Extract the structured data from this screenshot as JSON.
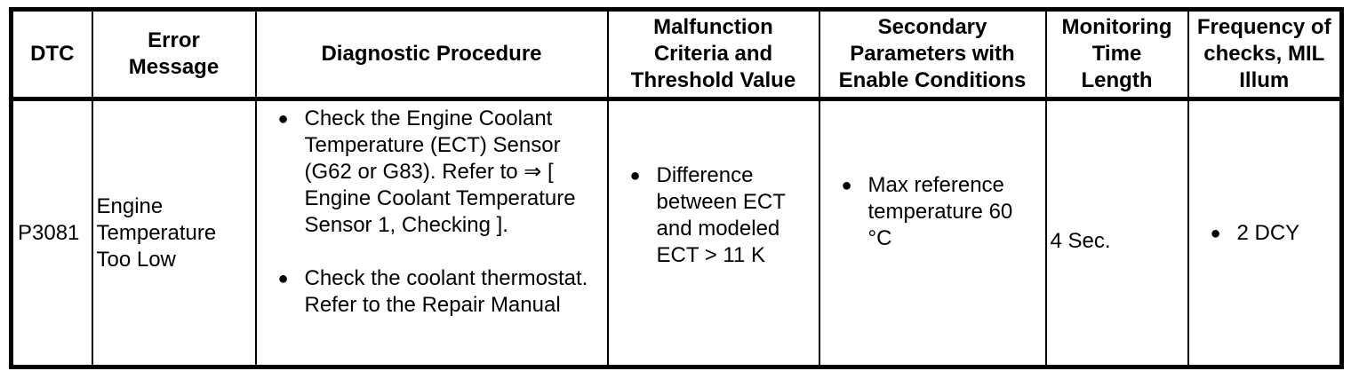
{
  "colors": {
    "border": "#000000",
    "text": "#000000",
    "background": "#ffffff"
  },
  "table": {
    "columns": [
      {
        "label": "DTC"
      },
      {
        "label": "Error Message"
      },
      {
        "label": "Diagnostic Procedure"
      },
      {
        "label": "Malfunction Criteria and Threshold Value"
      },
      {
        "label": "Secondary Parameters with Enable Conditions"
      },
      {
        "label": "Monitoring Time Length"
      },
      {
        "label": "Frequency of checks, MIL Illum"
      }
    ],
    "rows": [
      {
        "dtc": "P3081",
        "error_message": "Engine Temperature Too Low",
        "diagnostic_procedure": [
          "Check the Engine Coolant Temperature (ECT) Sensor (G62 or G83). Refer to ⇒ [ Engine Coolant Temperature Sensor 1, Checking ].",
          "Check the coolant thermostat. Refer to the Repair Manual"
        ],
        "malfunction_criteria": [
          "Difference between ECT and modeled ECT > 11 K"
        ],
        "secondary_parameters": [
          "Max reference temperature 60 °C"
        ],
        "monitoring_time_length": "4 Sec.",
        "frequency_of_checks": [
          "2 DCY"
        ]
      }
    ]
  },
  "bullet_glyph": "●"
}
